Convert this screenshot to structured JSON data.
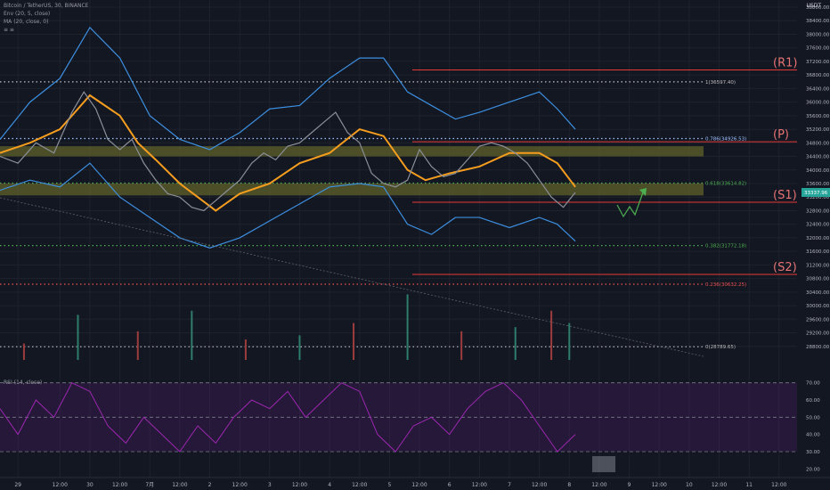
{
  "header": {
    "symbol": "Bitcoin / TetherUS, 30, BINANCE",
    "env": "Env (20, 5, close)",
    "ma": "MA (20, close, 0)",
    "extra": "≡ ≡",
    "unit": "USDT"
  },
  "rsi_label": "RSI (14, close)",
  "chart_data": {
    "type": "line",
    "title": "",
    "price_axis": {
      "range": [
        28400,
        38800
      ],
      "ticks": [
        28800,
        29200,
        29600,
        30000,
        30400,
        30800,
        31200,
        31600,
        32000,
        32400,
        32800,
        33200,
        33600,
        34000,
        34400,
        34800,
        35200,
        35600,
        36000,
        36400,
        36800,
        37200,
        37600,
        38000,
        38400,
        38800
      ]
    },
    "time_axis": {
      "ticks": [
        "29",
        "12:00",
        "30",
        "12:00",
        "7月",
        "12:00",
        "2",
        "12:00",
        "3",
        "12:00",
        "4",
        "12:00",
        "5",
        "12:00",
        "6",
        "12:00",
        "7",
        "12:00",
        "8",
        "12:00",
        "9",
        "12:00",
        "10",
        "12:00",
        "11",
        "12:00"
      ],
      "values": [
        0.3,
        1,
        1.5,
        2,
        2.5,
        3,
        3.5,
        4,
        4.5,
        5,
        5.5,
        6,
        6.5,
        7,
        7.5,
        8,
        8.5,
        9,
        9.5,
        10,
        10.5,
        11,
        11.5,
        12,
        12.5,
        13
      ]
    },
    "current_price": "33337.96",
    "fib_levels": [
      {
        "label": "1(36597.40)",
        "price": 36597,
        "color": "#bfbfbf"
      },
      {
        "label": "0.786(34926.53)",
        "price": 34926,
        "color": "#9ec3ff"
      },
      {
        "label": "0.618(33614.82)",
        "price": 33614,
        "color": "#4caf50"
      },
      {
        "label": "0.382(31772.18)",
        "price": 31772,
        "color": "#4caf50"
      },
      {
        "label": "0.236(30632.25)",
        "price": 30632,
        "color": "#ef5350"
      },
      {
        "label": "0(28789.65)",
        "price": 28789,
        "color": "#bfbfbf"
      }
    ],
    "pivot_levels": [
      {
        "label": "(R1)",
        "price": 36950
      },
      {
        "label": "(P)",
        "price": 34830
      },
      {
        "label": "(S1)",
        "price": 33050
      },
      {
        "label": "(S2)",
        "price": 30920
      }
    ],
    "zones": [
      {
        "from": 34400,
        "to": 34700
      },
      {
        "from": 33250,
        "to": 33600
      }
    ],
    "series": [
      {
        "name": "MA (20, close, 0)",
        "color": "#f59d1e",
        "x": [
          0,
          0.5,
          1,
          1.5,
          2,
          2.3,
          2.6,
          3,
          3.3,
          3.6,
          4,
          4.5,
          5,
          5.5,
          6,
          6.4,
          6.8,
          7.1,
          7.5,
          8,
          8.5,
          9,
          9.3,
          9.6
        ],
        "y": [
          34500,
          34800,
          35200,
          36200,
          35600,
          34800,
          34300,
          33600,
          33200,
          32800,
          33300,
          33600,
          34200,
          34500,
          35200,
          35000,
          34000,
          33700,
          33900,
          34100,
          34500,
          34500,
          34200,
          33500
        ]
      },
      {
        "name": "Env upper",
        "color": "#3d8fe0",
        "x": [
          0,
          0.5,
          1,
          1.5,
          2,
          2.5,
          3,
          3.5,
          4,
          4.5,
          5,
          5.5,
          6,
          6.4,
          6.8,
          7.2,
          7.6,
          8,
          8.5,
          9,
          9.3,
          9.6
        ],
        "y": [
          34900,
          36000,
          36700,
          38200,
          37300,
          35600,
          34900,
          34600,
          35100,
          35800,
          35900,
          36700,
          37300,
          37300,
          36300,
          35900,
          35500,
          35700,
          36000,
          36300,
          35800,
          35200
        ]
      },
      {
        "name": "Env lower",
        "color": "#3d8fe0",
        "x": [
          0,
          0.5,
          1,
          1.5,
          2,
          2.5,
          3,
          3.5,
          4,
          4.5,
          5,
          5.5,
          6,
          6.4,
          6.8,
          7.2,
          7.6,
          8,
          8.5,
          9,
          9.3,
          9.6
        ],
        "y": [
          33400,
          33700,
          33500,
          34200,
          33200,
          32600,
          32000,
          31700,
          32000,
          32500,
          33000,
          33500,
          33600,
          33500,
          32400,
          32100,
          32600,
          32600,
          32300,
          32600,
          32400,
          31900
        ]
      },
      {
        "name": "Price",
        "color": "#8a8f98",
        "x": [
          0,
          0.3,
          0.6,
          0.9,
          1.2,
          1.4,
          1.6,
          1.8,
          2.0,
          2.2,
          2.4,
          2.6,
          2.8,
          3.0,
          3.2,
          3.4,
          3.6,
          3.8,
          4.0,
          4.2,
          4.4,
          4.6,
          4.8,
          5.0,
          5.2,
          5.4,
          5.6,
          5.8,
          6.0,
          6.2,
          6.4,
          6.6,
          6.8,
          7.0,
          7.2,
          7.4,
          7.6,
          7.8,
          8.0,
          8.2,
          8.4,
          8.6,
          8.8,
          9.0,
          9.2,
          9.4,
          9.6
        ],
        "y": [
          34400,
          34200,
          34800,
          34500,
          35700,
          36300,
          35800,
          34900,
          34600,
          34900,
          34200,
          33700,
          33300,
          33200,
          32900,
          32800,
          33100,
          33400,
          33700,
          34200,
          34500,
          34300,
          34700,
          34800,
          35100,
          35400,
          35700,
          35100,
          34800,
          33900,
          33600,
          33500,
          33700,
          34600,
          34100,
          33800,
          33900,
          34300,
          34700,
          34800,
          34700,
          34500,
          34200,
          33700,
          33200,
          32900,
          33337
        ]
      }
    ],
    "rsi": {
      "range": [
        15,
        75
      ],
      "ticks": [
        20,
        30,
        40,
        50,
        60,
        70
      ],
      "ob": 70,
      "os": 30,
      "mid": 50,
      "x": [
        0,
        0.3,
        0.6,
        0.9,
        1.2,
        1.5,
        1.8,
        2.1,
        2.4,
        2.7,
        3.0,
        3.3,
        3.6,
        3.9,
        4.2,
        4.5,
        4.8,
        5.1,
        5.4,
        5.7,
        6.0,
        6.3,
        6.6,
        6.9,
        7.2,
        7.5,
        7.8,
        8.1,
        8.4,
        8.7,
        9.0,
        9.3,
        9.6
      ],
      "y": [
        55,
        40,
        60,
        50,
        70,
        65,
        45,
        35,
        50,
        40,
        30,
        45,
        35,
        50,
        60,
        55,
        65,
        50,
        60,
        70,
        65,
        40,
        30,
        45,
        50,
        40,
        55,
        65,
        70,
        60,
        45,
        30,
        40
      ]
    },
    "volume": {
      "max": 100,
      "x": [
        0.4,
        1.3,
        2.3,
        3.2,
        4.1,
        5.0,
        5.9,
        6.8,
        7.7,
        8.6,
        9.2,
        9.5
      ],
      "values": [
        20,
        55,
        35,
        60,
        25,
        30,
        45,
        80,
        35,
        40,
        60,
        45
      ]
    }
  }
}
